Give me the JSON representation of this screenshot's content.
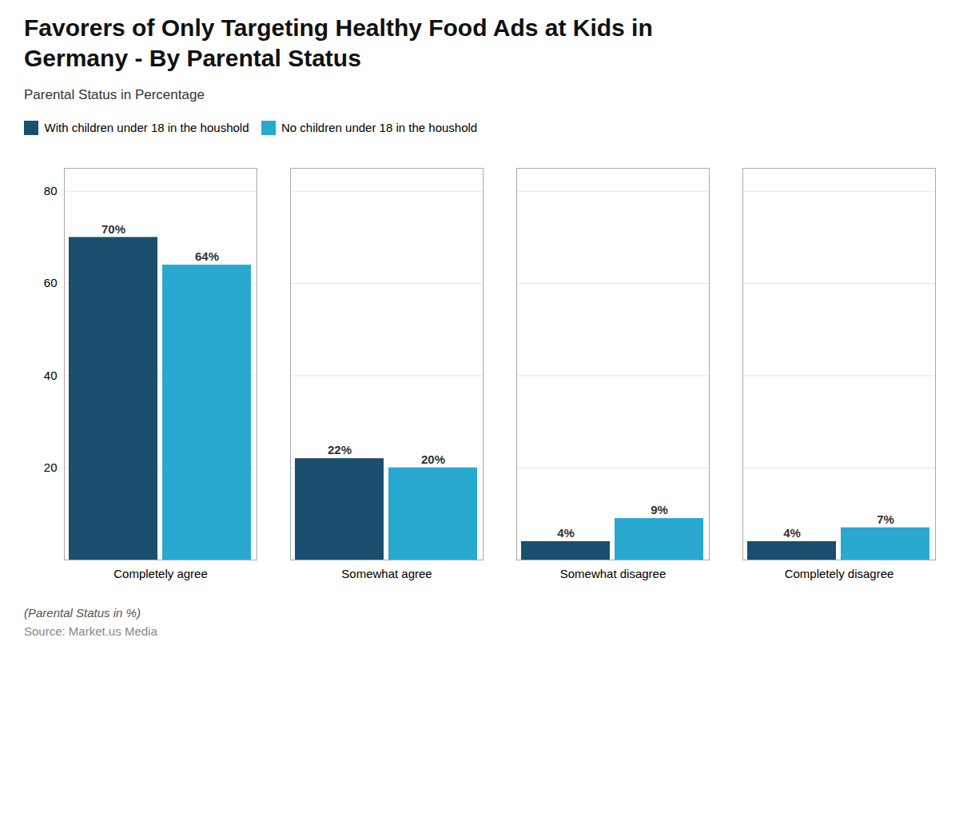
{
  "chart_data": {
    "type": "bar",
    "title": "Favorers of Only Targeting Healthy Food Ads at Kids in\nGermany - By Parental Status",
    "subtitle": "Parental Status in Percentage",
    "footnote": "(Parental Status in %)",
    "source": "Source: Market.us Media",
    "categories": [
      "Completely agree",
      "Somewhat agree",
      "Somewhat disagree",
      "Completely disagree"
    ],
    "series": [
      {
        "name": "With children under 18 in the houshold",
        "color": "#1a4f6e",
        "values": [
          70,
          22,
          4,
          4
        ],
        "value_labels": [
          "70%",
          "22%",
          "4%",
          "4%"
        ]
      },
      {
        "name": "No children under 18 in the houshold",
        "color": "#29a8d0",
        "values": [
          64,
          20,
          9,
          7
        ],
        "value_labels": [
          "64%",
          "20%",
          "9%",
          "7%"
        ]
      }
    ],
    "ylim": [
      0,
      85
    ],
    "yticks": [
      20,
      40,
      60,
      80
    ],
    "grid": true,
    "legend": "upper left",
    "data_labels": true
  }
}
